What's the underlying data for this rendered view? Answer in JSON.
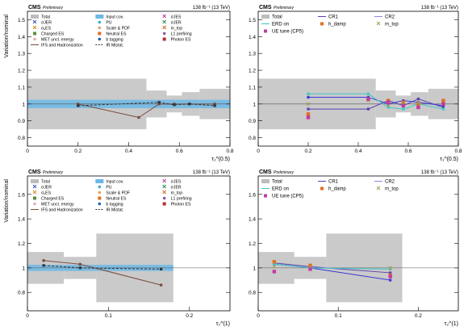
{
  "figure": {
    "panels": [
      {
        "header": {
          "left": "CMS",
          "left_sub": "Preliminary",
          "right": "138 fb⁻¹ (13 TeV)"
        },
        "ylabel": "Variation/nominal",
        "xlabel": "τ₁^(0.5)",
        "legend": [
          {
            "label": "Total",
            "marker": "band",
            "color": "#bdbdbd"
          },
          {
            "label": "Input cov.",
            "marker": "band",
            "color": "#6cb8e6"
          },
          {
            "label": "σJES",
            "marker": "x",
            "color": "#c23aa0"
          },
          {
            "label": "σJER",
            "marker": "x",
            "color": "#3a4fc2"
          },
          {
            "label": "PU",
            "marker": "dot",
            "color": "#3aa7d6"
          },
          {
            "label": "σJER",
            "marker": "x",
            "color": "#2e8b57"
          },
          {
            "label": "σᵤES",
            "marker": "x",
            "color": "#d48a1e"
          },
          {
            "label": "Scale & PDF",
            "marker": "dot",
            "color": "#e0a060"
          },
          {
            "label": "m_top",
            "marker": "x",
            "color": "#d2691e"
          },
          {
            "label": "Charged ES",
            "marker": "sq",
            "color": "#5a8f3a"
          },
          {
            "label": "Neutral ES",
            "marker": "sq",
            "color": "#e07020"
          },
          {
            "label": "L1 prefiring",
            "marker": "dot",
            "color": "#8a5a9a"
          },
          {
            "label": "MET uncl. energy",
            "marker": "dot",
            "color": "#e0b0b0"
          },
          {
            "label": "b tagging",
            "marker": "dot",
            "color": "#1f5fb8"
          },
          {
            "label": "Photon ES",
            "marker": "sq",
            "color": "#b03030"
          },
          {
            "label": "IFS and Hadronization",
            "marker": "line",
            "color": "#7a4a3a"
          },
          {
            "label": "IR Mistat.",
            "marker": "dash",
            "color": "#333333"
          }
        ]
      },
      {
        "header": {
          "left": "CMS",
          "left_sub": "Preliminary",
          "right": "138 fb⁻¹ (13 TeV)"
        },
        "ylabel": "",
        "xlabel": "τ₁^(0.5)",
        "legend": [
          {
            "label": "Total",
            "marker": "band",
            "color": "#bdbdbd"
          },
          {
            "label": "CR1",
            "marker": "line",
            "color": "#5b3fb0"
          },
          {
            "label": "CR2",
            "marker": "line",
            "color": "#9b7fe0"
          },
          {
            "label": "ERD on",
            "marker": "line",
            "color": "#3fc8c8"
          },
          {
            "label": "h_damp",
            "marker": "sq",
            "color": "#e07020"
          },
          {
            "label": "m_top",
            "marker": "x",
            "color": "#a0a060"
          },
          {
            "label": "UE tune (CP5)",
            "marker": "sq",
            "color": "#c23aa0"
          }
        ]
      },
      {
        "header": {
          "left": "CMS",
          "left_sub": "Preliminary",
          "right": "138 fb⁻¹ (13 TeV)"
        },
        "ylabel": "Variation/nominal",
        "xlabel": "τ₂^(1)",
        "legend": [
          {
            "label": "Total",
            "marker": "band",
            "color": "#bdbdbd"
          },
          {
            "label": "Input cov.",
            "marker": "band",
            "color": "#6cb8e6"
          },
          {
            "label": "σJES",
            "marker": "x",
            "color": "#c23aa0"
          },
          {
            "label": "σJER",
            "marker": "x",
            "color": "#3a4fc2"
          },
          {
            "label": "PU",
            "marker": "dot",
            "color": "#3aa7d6"
          },
          {
            "label": "σJER",
            "marker": "x",
            "color": "#2e8b57"
          },
          {
            "label": "σᵤES",
            "marker": "x",
            "color": "#d48a1e"
          },
          {
            "label": "Scale & PDF",
            "marker": "dot",
            "color": "#e0a060"
          },
          {
            "label": "m_top",
            "marker": "x",
            "color": "#d2691e"
          },
          {
            "label": "Charged ES",
            "marker": "sq",
            "color": "#5a8f3a"
          },
          {
            "label": "Neutral ES",
            "marker": "sq",
            "color": "#e07020"
          },
          {
            "label": "L1 prefiring",
            "marker": "dot",
            "color": "#8a5a9a"
          },
          {
            "label": "MET uncl. energy",
            "marker": "dot",
            "color": "#e0b0b0"
          },
          {
            "label": "b tagging",
            "marker": "dot",
            "color": "#1f5fb8"
          },
          {
            "label": "Photon ES",
            "marker": "sq",
            "color": "#b03030"
          },
          {
            "label": "IFS and Hadronization",
            "marker": "line",
            "color": "#7a4a3a"
          },
          {
            "label": "IR Mistat.",
            "marker": "dash",
            "color": "#333333"
          }
        ]
      },
      {
        "header": {
          "left": "CMS",
          "left_sub": "Preliminary",
          "right": "138 fb⁻¹ (13 TeV)"
        },
        "ylabel": "",
        "xlabel": "τ₂^(1)",
        "legend": [
          {
            "label": "Total",
            "marker": "band",
            "color": "#bdbdbd"
          },
          {
            "label": "CR1",
            "marker": "line",
            "color": "#5b3fb0"
          },
          {
            "label": "CR2",
            "marker": "line",
            "color": "#9b7fe0"
          },
          {
            "label": "ERD on",
            "marker": "line",
            "color": "#3fc8c8"
          },
          {
            "label": "h_damp",
            "marker": "sq",
            "color": "#e07020"
          },
          {
            "label": "m_top",
            "marker": "x",
            "color": "#a0a060"
          },
          {
            "label": "UE tune (CP5)",
            "marker": "sq",
            "color": "#c23aa0"
          }
        ]
      }
    ]
  },
  "chart_data": [
    {
      "type": "line",
      "title": "",
      "xlabel": "τ₁^(0.5)",
      "ylabel": "Variation/nominal",
      "xlim": [
        0,
        0.8
      ],
      "ylim": [
        0.75,
        1.55
      ],
      "xticks": [
        0,
        0.2,
        0.4,
        0.6,
        0.8
      ],
      "yticks": [
        0.8,
        0.9,
        1.0,
        1.1,
        1.2,
        1.3,
        1.4,
        1.5
      ],
      "bins": [
        [
          0,
          0.47
        ],
        [
          0.47,
          0.55
        ],
        [
          0.55,
          0.61
        ],
        [
          0.61,
          0.68
        ],
        [
          0.68,
          0.8
        ]
      ],
      "total_band": [
        [
          0.85,
          1.15
        ],
        [
          0.92,
          1.08
        ],
        [
          0.95,
          1.05
        ],
        [
          0.93,
          1.07
        ],
        [
          0.91,
          1.09
        ]
      ],
      "input_cov_band": [
        [
          0.975,
          1.025
        ],
        [
          0.975,
          1.025
        ],
        [
          0.975,
          1.025
        ],
        [
          0.975,
          1.025
        ],
        [
          0.975,
          1.025
        ]
      ],
      "series": [
        {
          "name": "IFS and Hadronization",
          "x": [
            0.2,
            0.44,
            0.52,
            0.58,
            0.64,
            0.74
          ],
          "values": [
            1.0,
            0.92,
            1.0,
            1.0,
            1.0,
            1.0
          ]
        },
        {
          "name": "IR Mistat.",
          "x": [
            0.2,
            0.52,
            0.58,
            0.64,
            0.74
          ],
          "values": [
            0.99,
            1.01,
            0.995,
            1.0,
            0.99
          ]
        }
      ],
      "legend_position": "top"
    },
    {
      "type": "line",
      "title": "",
      "xlabel": "τ₁^(0.5)",
      "ylabel": "",
      "xlim": [
        0,
        0.8
      ],
      "ylim": [
        0.75,
        1.55
      ],
      "xticks": [
        0,
        0.2,
        0.4,
        0.6,
        0.8
      ],
      "yticks": [
        0.8,
        0.9,
        1.0,
        1.1,
        1.2,
        1.3,
        1.4,
        1.5
      ],
      "bins": [
        [
          0,
          0.47
        ],
        [
          0.47,
          0.55
        ],
        [
          0.55,
          0.61
        ],
        [
          0.61,
          0.68
        ],
        [
          0.68,
          0.8
        ]
      ],
      "total_band": [
        [
          0.85,
          1.15
        ],
        [
          0.92,
          1.08
        ],
        [
          0.95,
          1.05
        ],
        [
          0.93,
          1.07
        ],
        [
          0.91,
          1.09
        ]
      ],
      "x": [
        0.2,
        0.44,
        0.52,
        0.58,
        0.64,
        0.74
      ],
      "series": [
        {
          "name": "CR1",
          "values": [
            0.97,
            0.97,
            1.02,
            0.99,
            1.03,
            0.98
          ]
        },
        {
          "name": "CR2",
          "values": [
            1.04,
            1.04,
            1.0,
            1.02,
            1.01,
            0.99
          ]
        },
        {
          "name": "ERD on",
          "values": [
            1.06,
            1.06,
            0.98,
            0.97,
            1.0,
            0.97
          ]
        },
        {
          "name": "h_damp",
          "values": [
            0.94,
            1.03,
            1.02,
            1.01,
            1.0,
            1.02
          ]
        },
        {
          "name": "m_top",
          "values": [
            1.0,
            1.02,
            0.99,
            1.0,
            1.01,
            1.0
          ]
        },
        {
          "name": "UE tune (CP5)",
          "values": [
            0.92,
            1.03,
            1.01,
            0.99,
            0.98,
            1.0
          ]
        }
      ],
      "legend_position": "top"
    },
    {
      "type": "line",
      "title": "",
      "xlabel": "τ₂^(1)",
      "ylabel": "Variation/nominal",
      "xlim": [
        0,
        0.25
      ],
      "ylim": [
        0.65,
        1.75
      ],
      "xticks": [
        0,
        0.1,
        0.2
      ],
      "yticks": [
        0.8,
        1.0,
        1.2,
        1.4,
        1.6
      ],
      "bins": [
        [
          0,
          0.045
        ],
        [
          0.045,
          0.085
        ],
        [
          0.085,
          0.18
        ]
      ],
      "total_band": [
        [
          0.87,
          1.13
        ],
        [
          0.91,
          1.09
        ],
        [
          0.72,
          1.28
        ]
      ],
      "input_cov_band": [
        [
          0.975,
          1.025
        ],
        [
          0.975,
          1.025
        ],
        [
          0.975,
          1.025
        ]
      ],
      "series": [
        {
          "name": "IFS and Hadronization",
          "x": [
            0.02,
            0.065,
            0.165
          ],
          "values": [
            1.06,
            1.03,
            0.86
          ]
        },
        {
          "name": "IR Mistat.",
          "x": [
            0.02,
            0.065,
            0.165
          ],
          "values": [
            1.02,
            1.0,
            0.99
          ]
        }
      ],
      "legend_position": "top"
    },
    {
      "type": "line",
      "title": "",
      "xlabel": "τ₂^(1)",
      "ylabel": "",
      "xlim": [
        0,
        0.25
      ],
      "ylim": [
        0.65,
        1.75
      ],
      "xticks": [
        0,
        0.1,
        0.2
      ],
      "yticks": [
        0.8,
        1.0,
        1.2,
        1.4,
        1.6
      ],
      "bins": [
        [
          0,
          0.045
        ],
        [
          0.045,
          0.085
        ],
        [
          0.085,
          0.18
        ]
      ],
      "total_band": [
        [
          0.87,
          1.13
        ],
        [
          0.91,
          1.09
        ],
        [
          0.72,
          1.28
        ]
      ],
      "x": [
        0.02,
        0.065,
        0.165
      ],
      "series": [
        {
          "name": "CR1",
          "values": [
            1.04,
            1.01,
            0.96
          ]
        },
        {
          "name": "CR2",
          "values": [
            1.03,
            1.0,
            0.9
          ]
        },
        {
          "name": "ERD on",
          "values": [
            1.03,
            1.0,
            0.99
          ]
        },
        {
          "name": "h_damp",
          "values": [
            1.05,
            1.02,
            0.94
          ]
        },
        {
          "name": "m_top",
          "values": [
            1.01,
            1.0,
            1.0
          ]
        },
        {
          "name": "UE tune (CP5)",
          "values": [
            0.97,
            0.99,
            0.93
          ]
        }
      ],
      "legend_position": "top"
    }
  ]
}
